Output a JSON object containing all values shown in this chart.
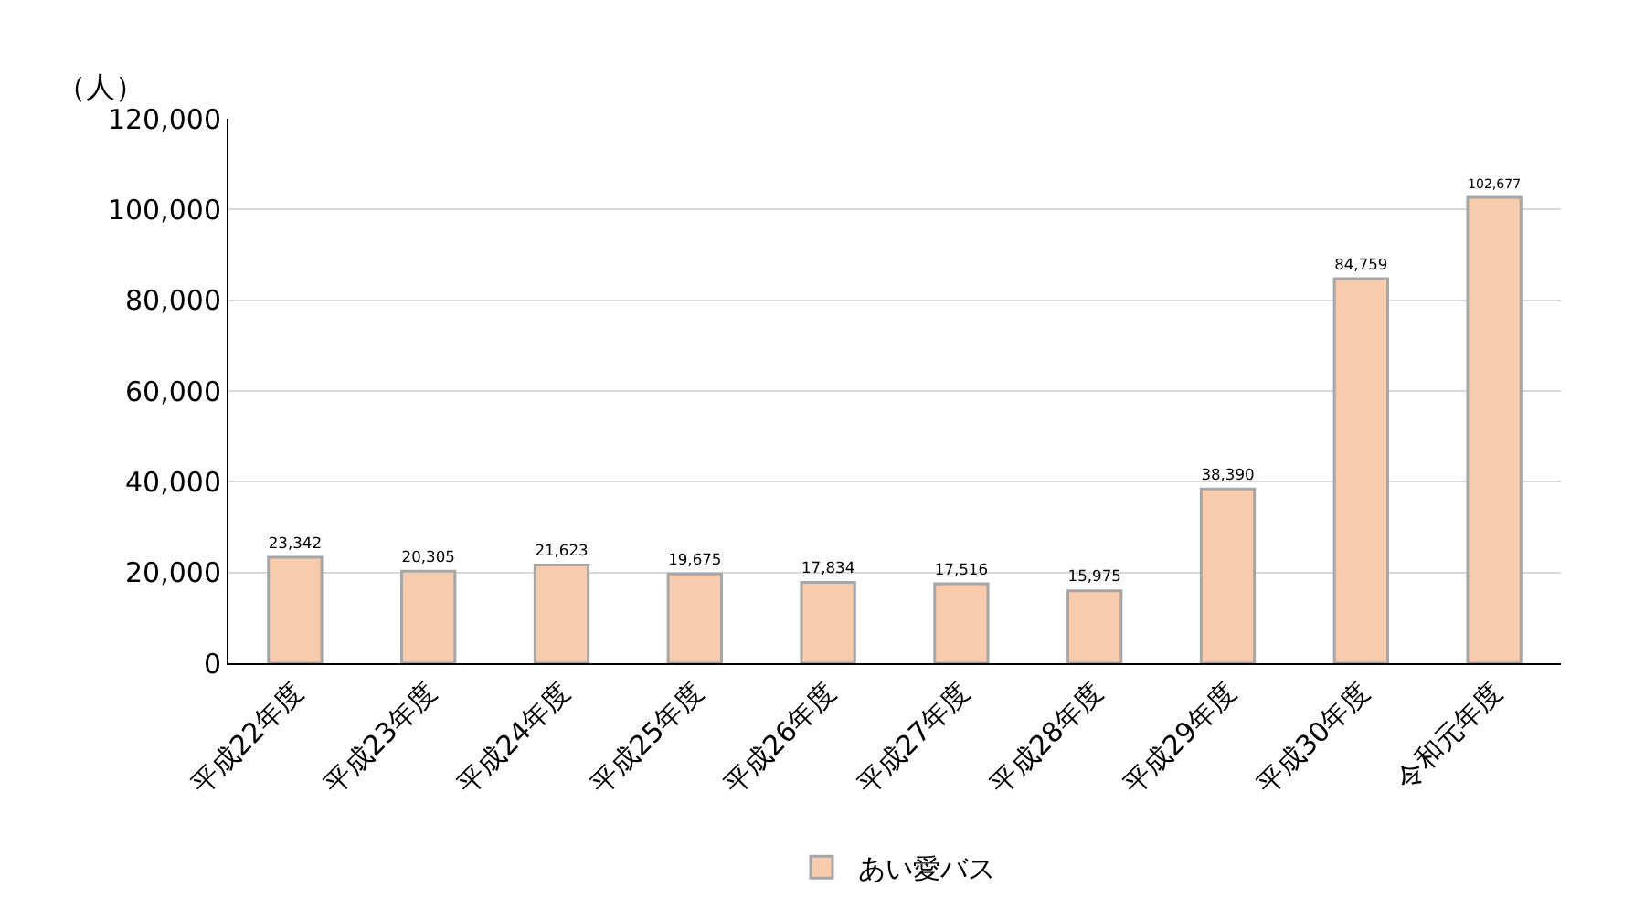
{
  "chart_data": {
    "type": "bar",
    "ylabel": "（人）",
    "categories": [
      "平成22年度",
      "平成23年度",
      "平成24年度",
      "平成25年度",
      "平成26年度",
      "平成27年度",
      "平成28年度",
      "平成29年度",
      "平成30年度",
      "令和元年度"
    ],
    "series": [
      {
        "name": "あい愛バス",
        "color": "#f8cbad",
        "values": [
          23342,
          20305,
          21623,
          19675,
          17834,
          17516,
          15975,
          38390,
          84759,
          102677
        ]
      }
    ],
    "value_labels": [
      "23,342",
      "20,305",
      "21,623",
      "19,675",
      "17,834",
      "17,516",
      "15,975",
      "38,390",
      "84,759",
      "102,677"
    ],
    "ylim": [
      0,
      120000
    ],
    "yticks": [
      {
        "value": 0,
        "label": "0"
      },
      {
        "value": 20000,
        "label": "20,000"
      },
      {
        "value": 40000,
        "label": "40,000"
      },
      {
        "value": 60000,
        "label": "60,000"
      },
      {
        "value": 80000,
        "label": "80,000"
      },
      {
        "value": 100000,
        "label": "100,000"
      },
      {
        "value": 120000,
        "label": "120,000"
      }
    ],
    "grid": "y",
    "legend": "bottom"
  }
}
